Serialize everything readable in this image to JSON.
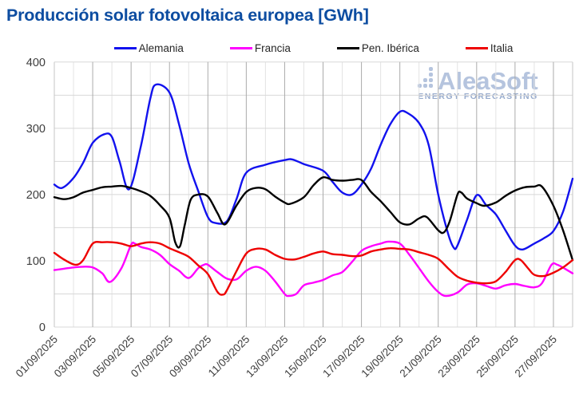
{
  "header": {
    "title": "Producción solar fotovoltaica europea [GWh]",
    "title_color": "#0d4da1"
  },
  "watermark": {
    "brand": "AleaSoft",
    "subtitle": "ENERGY FORECASTING",
    "color": "#b5c4de",
    "subtitle_color": "#97abcd"
  },
  "styles": {
    "grid_h": "#d8d8d8",
    "grid_v_minor": "#e3e3e3",
    "grid_v_major": "#ababab",
    "plot_border": "#c6c6c6",
    "axis_text": "#3d3d3d"
  },
  "chart_data": {
    "type": "line",
    "title": "Producción solar fotovoltaica europea [GWh]",
    "xlabel": "",
    "ylabel": "",
    "ylim": [
      0,
      400
    ],
    "y_ticks": [
      0,
      100,
      200,
      300,
      400
    ],
    "y_grid_step": 50,
    "grid": true,
    "legend_position": "top",
    "x_unit": "day of September 2025",
    "x_range_days": [
      1,
      28
    ],
    "x_tick_days": [
      1,
      3,
      5,
      7,
      9,
      11,
      13,
      15,
      17,
      19,
      21,
      23,
      25,
      27
    ],
    "x_tick_labels": [
      "01/09/2025",
      "03/09/2025",
      "05/09/2025",
      "07/09/2025",
      "09/09/2025",
      "11/09/2025",
      "13/09/2025",
      "15/09/2025",
      "17/09/2025",
      "19/09/2025",
      "21/09/2025",
      "23/09/2025",
      "25/09/2025",
      "27/09/2025"
    ],
    "series": [
      {
        "name": "Alemania",
        "color": "#1212ee",
        "points": [
          [
            1,
            215
          ],
          [
            1.4,
            210
          ],
          [
            2,
            225
          ],
          [
            2.5,
            248
          ],
          [
            3,
            278
          ],
          [
            3.6,
            291
          ],
          [
            4,
            287
          ],
          [
            4.4,
            250
          ],
          [
            4.9,
            208
          ],
          [
            5.5,
            272
          ],
          [
            6,
            345
          ],
          [
            6.3,
            366
          ],
          [
            7,
            354
          ],
          [
            7.5,
            306
          ],
          [
            8,
            247
          ],
          [
            8.5,
            205
          ],
          [
            9,
            166
          ],
          [
            9.4,
            157
          ],
          [
            10,
            160
          ],
          [
            10.5,
            194
          ],
          [
            11,
            233
          ],
          [
            12,
            245
          ],
          [
            13,
            252
          ],
          [
            13.4,
            253
          ],
          [
            14,
            246
          ],
          [
            15,
            236
          ],
          [
            15.5,
            219
          ],
          [
            16,
            203
          ],
          [
            16.5,
            200
          ],
          [
            17,
            215
          ],
          [
            17.5,
            239
          ],
          [
            18,
            275
          ],
          [
            18.5,
            306
          ],
          [
            19,
            325
          ],
          [
            19.4,
            323
          ],
          [
            20,
            308
          ],
          [
            20.5,
            275
          ],
          [
            21,
            200
          ],
          [
            21.5,
            142
          ],
          [
            21.8,
            120
          ],
          [
            22,
            123
          ],
          [
            22.5,
            162
          ],
          [
            23,
            199
          ],
          [
            23.5,
            184
          ],
          [
            24,
            170
          ],
          [
            24.5,
            146
          ],
          [
            25,
            123
          ],
          [
            25.4,
            117
          ],
          [
            26,
            126
          ],
          [
            26.5,
            134
          ],
          [
            27,
            145
          ],
          [
            27.5,
            174
          ],
          [
            28,
            224
          ]
        ]
      },
      {
        "name": "Francia",
        "color": "#ff00ff",
        "points": [
          [
            1,
            86
          ],
          [
            1.5,
            88
          ],
          [
            2,
            90
          ],
          [
            2.5,
            91
          ],
          [
            3,
            90
          ],
          [
            3.5,
            81
          ],
          [
            3.9,
            68
          ],
          [
            4.5,
            89
          ],
          [
            5,
            124
          ],
          [
            5.2,
            126
          ],
          [
            5.5,
            121
          ],
          [
            6,
            117
          ],
          [
            6.5,
            109
          ],
          [
            7,
            95
          ],
          [
            7.5,
            85
          ],
          [
            8,
            74
          ],
          [
            8.5,
            89
          ],
          [
            8.8,
            94
          ],
          [
            9,
            94
          ],
          [
            9.5,
            83
          ],
          [
            10,
            73
          ],
          [
            10.5,
            72
          ],
          [
            11,
            85
          ],
          [
            11.5,
            91
          ],
          [
            12,
            85
          ],
          [
            12.5,
            69
          ],
          [
            13,
            50
          ],
          [
            13.2,
            47
          ],
          [
            13.6,
            50
          ],
          [
            14,
            63
          ],
          [
            14.5,
            67
          ],
          [
            15,
            71
          ],
          [
            15.5,
            78
          ],
          [
            16,
            83
          ],
          [
            16.5,
            98
          ],
          [
            17,
            115
          ],
          [
            17.5,
            122
          ],
          [
            18,
            126
          ],
          [
            18.4,
            129
          ],
          [
            19,
            126
          ],
          [
            19.5,
            109
          ],
          [
            20,
            89
          ],
          [
            20.5,
            69
          ],
          [
            21,
            53
          ],
          [
            21.4,
            47
          ],
          [
            22,
            52
          ],
          [
            22.5,
            64
          ],
          [
            23,
            66
          ],
          [
            23.5,
            62
          ],
          [
            24,
            58
          ],
          [
            24.5,
            63
          ],
          [
            25,
            65
          ],
          [
            25.5,
            62
          ],
          [
            26,
            60
          ],
          [
            26.4,
            66
          ],
          [
            26.9,
            94
          ],
          [
            27.2,
            94
          ],
          [
            27.6,
            88
          ],
          [
            28,
            81
          ]
        ]
      },
      {
        "name": "Pen. Ibérica",
        "color": "#000000",
        "points": [
          [
            1,
            196
          ],
          [
            1.5,
            193
          ],
          [
            2,
            196
          ],
          [
            2.5,
            203
          ],
          [
            3,
            207
          ],
          [
            3.5,
            211
          ],
          [
            4,
            212
          ],
          [
            4.5,
            213
          ],
          [
            5,
            210
          ],
          [
            5.5,
            205
          ],
          [
            6,
            198
          ],
          [
            6.5,
            184
          ],
          [
            7,
            165
          ],
          [
            7.3,
            128
          ],
          [
            7.55,
            122
          ],
          [
            7.8,
            155
          ],
          [
            8.1,
            192
          ],
          [
            8.5,
            200
          ],
          [
            9,
            197
          ],
          [
            9.5,
            172
          ],
          [
            9.9,
            155
          ],
          [
            10.5,
            184
          ],
          [
            11,
            204
          ],
          [
            11.5,
            210
          ],
          [
            12,
            208
          ],
          [
            12.5,
            197
          ],
          [
            13,
            188
          ],
          [
            13.3,
            186
          ],
          [
            14,
            196
          ],
          [
            14.5,
            214
          ],
          [
            15,
            226
          ],
          [
            15.5,
            222
          ],
          [
            16,
            221
          ],
          [
            16.5,
            222
          ],
          [
            17,
            222
          ],
          [
            17.5,
            204
          ],
          [
            18,
            190
          ],
          [
            18.5,
            174
          ],
          [
            19,
            158
          ],
          [
            19.5,
            155
          ],
          [
            20,
            164
          ],
          [
            20.4,
            166
          ],
          [
            21,
            146
          ],
          [
            21.3,
            143
          ],
          [
            21.6,
            160
          ],
          [
            22,
            200
          ],
          [
            22.2,
            203
          ],
          [
            22.5,
            194
          ],
          [
            23,
            187
          ],
          [
            23.4,
            183
          ],
          [
            24,
            188
          ],
          [
            24.5,
            198
          ],
          [
            25,
            206
          ],
          [
            25.5,
            211
          ],
          [
            26,
            212
          ],
          [
            26.4,
            212
          ],
          [
            27,
            183
          ],
          [
            27.5,
            146
          ],
          [
            28,
            101
          ]
        ]
      },
      {
        "name": "Italia",
        "color": "#ee0000",
        "points": [
          [
            1,
            112
          ],
          [
            1.5,
            102
          ],
          [
            2.1,
            94
          ],
          [
            2.5,
            101
          ],
          [
            3,
            126
          ],
          [
            3.5,
            128
          ],
          [
            4,
            128
          ],
          [
            4.5,
            126
          ],
          [
            5,
            122
          ],
          [
            5.5,
            126
          ],
          [
            6,
            128
          ],
          [
            6.5,
            126
          ],
          [
            7,
            119
          ],
          [
            7.5,
            113
          ],
          [
            8,
            106
          ],
          [
            8.5,
            93
          ],
          [
            9,
            80
          ],
          [
            9.5,
            53
          ],
          [
            9.8,
            49
          ],
          [
            10,
            56
          ],
          [
            10.5,
            85
          ],
          [
            11,
            111
          ],
          [
            11.5,
            118
          ],
          [
            12,
            117
          ],
          [
            12.5,
            109
          ],
          [
            13,
            103
          ],
          [
            13.5,
            102
          ],
          [
            14,
            106
          ],
          [
            14.5,
            111
          ],
          [
            15,
            114
          ],
          [
            15.5,
            110
          ],
          [
            16,
            109
          ],
          [
            16.5,
            107
          ],
          [
            17,
            108
          ],
          [
            17.5,
            114
          ],
          [
            18,
            117
          ],
          [
            18.5,
            119
          ],
          [
            19,
            118
          ],
          [
            19.5,
            117
          ],
          [
            20,
            113
          ],
          [
            20.5,
            109
          ],
          [
            21,
            103
          ],
          [
            21.5,
            89
          ],
          [
            22,
            76
          ],
          [
            22.5,
            70
          ],
          [
            23,
            67
          ],
          [
            23.5,
            66
          ],
          [
            24,
            69
          ],
          [
            24.5,
            83
          ],
          [
            25,
            101
          ],
          [
            25.3,
            101
          ],
          [
            25.7,
            88
          ],
          [
            26,
            79
          ],
          [
            26.5,
            77
          ],
          [
            27,
            82
          ],
          [
            27.5,
            90
          ],
          [
            28,
            101
          ]
        ]
      }
    ],
    "watermark_text": "AleaSoft ENERGY FORECASTING"
  }
}
